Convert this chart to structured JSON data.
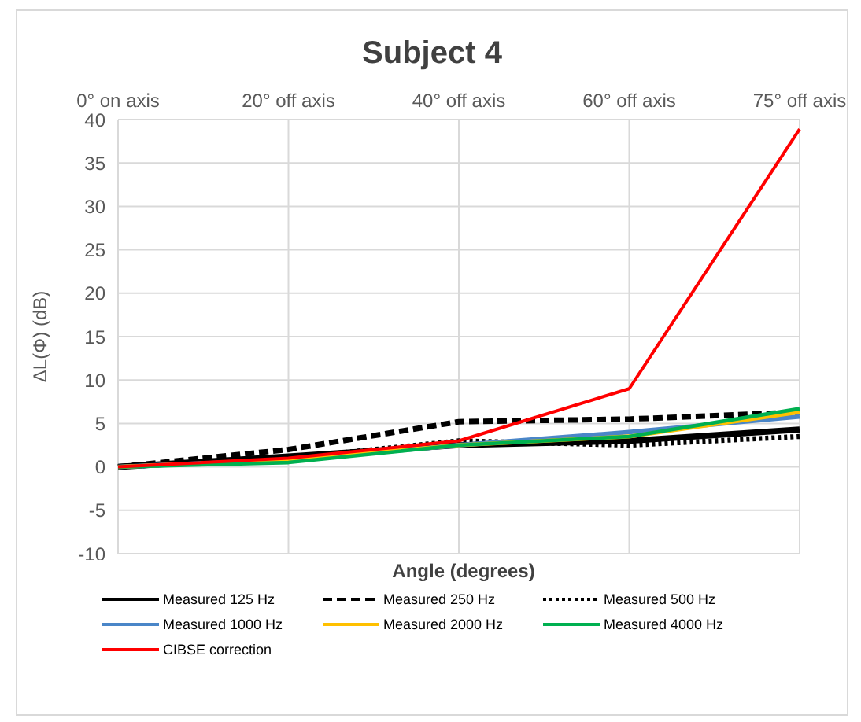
{
  "chart_data": {
    "type": "line",
    "title": "Subject 4",
    "xlabel": "Angle (degrees)",
    "ylabel": "ΔL(Φ) (dB)",
    "categories": [
      "0° on axis",
      "20° off axis",
      "40° off axis",
      "60° off axis",
      "75° off axis"
    ],
    "series": [
      {
        "name": "Measured 125 Hz",
        "color": "#000000",
        "line_style": "solid",
        "values": [
          0,
          1.2,
          2.5,
          3,
          4.3
        ]
      },
      {
        "name": "Measured 250 Hz",
        "color": "#000000",
        "line_style": "dashed",
        "values": [
          0,
          2,
          5.2,
          5.5,
          6.3
        ]
      },
      {
        "name": "Measured 500 Hz",
        "color": "#000000",
        "line_style": "dotted",
        "values": [
          0,
          1,
          3,
          2.5,
          3.5
        ]
      },
      {
        "name": "Measured 1000 Hz",
        "color": "#4a86c8",
        "line_style": "solid",
        "values": [
          0,
          0.8,
          2.5,
          4,
          5.8
        ]
      },
      {
        "name": "Measured 2000 Hz",
        "color": "#ffc000",
        "line_style": "solid",
        "values": [
          0,
          0.8,
          2.5,
          3.5,
          6.3
        ]
      },
      {
        "name": "Measured 4000 Hz",
        "color": "#00b050",
        "line_style": "solid",
        "values": [
          0,
          0.5,
          2.5,
          3.5,
          6.7
        ]
      },
      {
        "name": "CIBSE correction",
        "color": "#ff0000",
        "line_style": "solid",
        "values": [
          0,
          1,
          3,
          9,
          38.9
        ]
      }
    ],
    "ylim": [
      -10,
      40
    ],
    "yticks": [
      -10,
      -5,
      0,
      5,
      10,
      15,
      20,
      25,
      30,
      35,
      40
    ],
    "grid": true,
    "legend": "bottom",
    "marker": "none"
  }
}
